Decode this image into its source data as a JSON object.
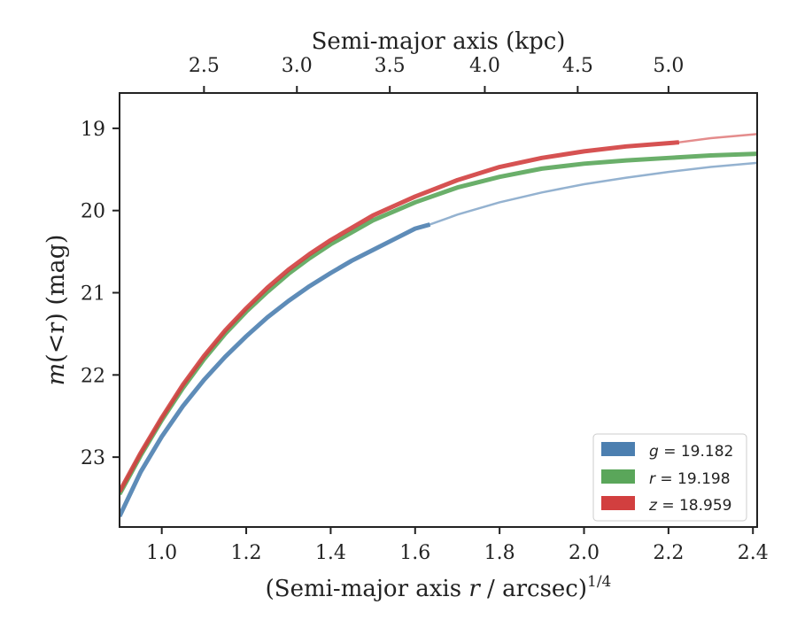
{
  "chart_data": {
    "type": "line",
    "xlabel": "(Semi-major axis r / arcsec)^1/4",
    "xlabel_parts": {
      "prefix": "(Semi-major axis ",
      "var": "r",
      "suffix": " / arcsec)",
      "sup": "1/4"
    },
    "ylabel": "m(<r) (mag)",
    "ylabel_parts": {
      "func": "m",
      "arg": "(<r)",
      "unit": " (mag)"
    },
    "top_xlabel": "Semi-major axis (kpc)",
    "xlim": [
      0.9,
      2.41
    ],
    "ylim": [
      23.85,
      18.57
    ],
    "y_inverted": true,
    "x_ticks": [
      1.0,
      1.2,
      1.4,
      1.6,
      1.8,
      2.0,
      2.2,
      2.4
    ],
    "x_tick_labels": [
      "1.0",
      "1.2",
      "1.4",
      "1.6",
      "1.8",
      "2.0",
      "2.2",
      "2.4"
    ],
    "y_ticks": [
      19,
      20,
      21,
      22,
      23
    ],
    "y_tick_labels": [
      "19",
      "20",
      "21",
      "22",
      "23"
    ],
    "top_ticks_x": [
      1.1,
      1.32,
      1.54,
      1.765,
      1.985,
      2.2
    ],
    "top_tick_labels": [
      "2.5",
      "3.0",
      "3.5",
      "4.0",
      "4.5",
      "5.0"
    ],
    "grid": false,
    "legend_position": "lower-right",
    "series": [
      {
        "name": "g = 19.182",
        "legend_var": "g",
        "legend_value": "= 19.182",
        "color": "#4c7fb0",
        "measured": {
          "x": [
            0.9,
            0.95,
            1.0,
            1.05,
            1.1,
            1.15,
            1.2,
            1.25,
            1.3,
            1.35,
            1.4,
            1.45,
            1.5,
            1.55,
            1.6,
            1.635
          ],
          "y": [
            23.72,
            23.18,
            22.75,
            22.38,
            22.06,
            21.78,
            21.53,
            21.3,
            21.1,
            20.92,
            20.76,
            20.61,
            20.48,
            20.35,
            20.22,
            20.17
          ]
        },
        "model": {
          "x": [
            1.635,
            1.7,
            1.8,
            1.9,
            2.0,
            2.1,
            2.2,
            2.3,
            2.41
          ],
          "y": [
            20.17,
            20.05,
            19.9,
            19.78,
            19.68,
            19.6,
            19.53,
            19.47,
            19.42
          ]
        }
      },
      {
        "name": "r = 19.198",
        "legend_var": "r",
        "legend_value": "= 19.198",
        "color": "#5aa65a",
        "measured": {
          "x": [
            0.9,
            0.95,
            1.0,
            1.05,
            1.1,
            1.15,
            1.2,
            1.25,
            1.3,
            1.35,
            1.4,
            1.5,
            1.6,
            1.7,
            1.8,
            1.9,
            2.0,
            2.1,
            2.2,
            2.3,
            2.41
          ],
          "y": [
            23.45,
            22.98,
            22.55,
            22.16,
            21.81,
            21.5,
            21.23,
            20.99,
            20.77,
            20.58,
            20.41,
            20.12,
            19.9,
            19.72,
            19.59,
            19.49,
            19.43,
            19.39,
            19.36,
            19.33,
            19.31
          ]
        }
      },
      {
        "name": "z = 18.959",
        "legend_var": "z",
        "legend_value": "= 18.959",
        "color": "#d23f3f",
        "measured": {
          "x": [
            0.9,
            0.95,
            1.0,
            1.05,
            1.1,
            1.15,
            1.2,
            1.25,
            1.3,
            1.35,
            1.4,
            1.5,
            1.6,
            1.7,
            1.8,
            1.9,
            2.0,
            2.1,
            2.2,
            2.225
          ],
          "y": [
            23.42,
            22.95,
            22.52,
            22.12,
            21.77,
            21.46,
            21.19,
            20.94,
            20.72,
            20.53,
            20.36,
            20.06,
            19.83,
            19.63,
            19.47,
            19.36,
            19.28,
            19.22,
            19.18,
            19.17
          ]
        },
        "model": {
          "x": [
            2.225,
            2.3,
            2.41
          ],
          "y": [
            19.17,
            19.12,
            19.07
          ]
        }
      }
    ]
  }
}
